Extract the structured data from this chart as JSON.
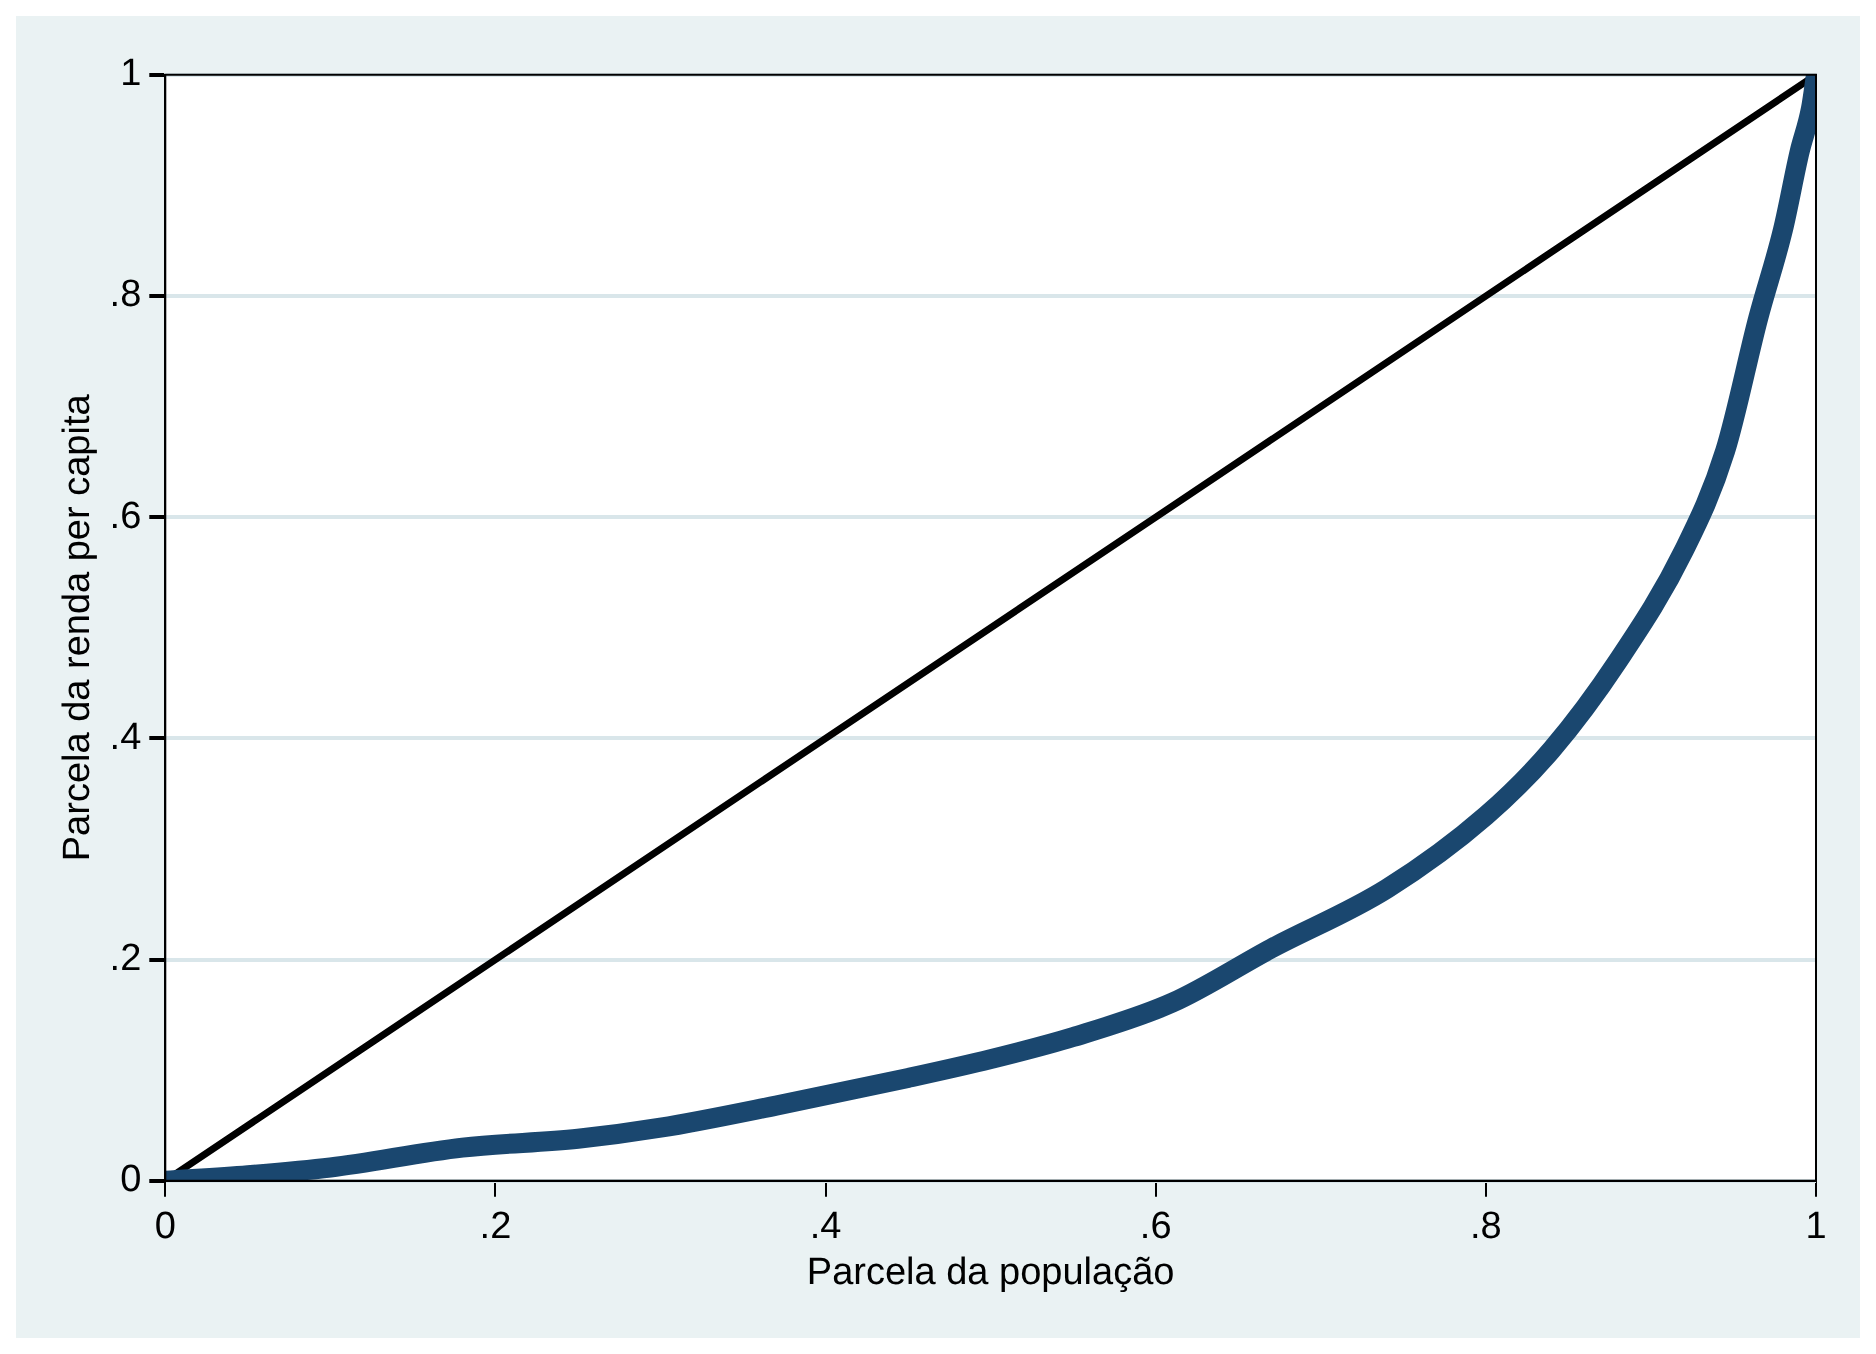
{
  "chart_data": {
    "type": "line",
    "xlabel": "Parcela da população",
    "ylabel": "Parcela da renda per capita",
    "xlim": [
      0,
      1
    ],
    "ylim": [
      0,
      1
    ],
    "xticks": [
      {
        "value": 0,
        "label": "0"
      },
      {
        "value": 0.2,
        "label": ".2"
      },
      {
        "value": 0.4,
        "label": ".4"
      },
      {
        "value": 0.6,
        "label": ".6"
      },
      {
        "value": 0.8,
        "label": ".8"
      },
      {
        "value": 1,
        "label": "1"
      }
    ],
    "yticks": [
      {
        "value": 0,
        "label": "0"
      },
      {
        "value": 0.2,
        "label": ".2"
      },
      {
        "value": 0.4,
        "label": ".4"
      },
      {
        "value": 0.6,
        "label": ".6"
      },
      {
        "value": 0.8,
        "label": ".8"
      },
      {
        "value": 1,
        "label": "1"
      }
    ],
    "grid": "y",
    "legend": false,
    "marker": "none",
    "line_style": "solid",
    "series": [
      {
        "color": "#1a476f",
        "x": [
          0,
          0.05,
          0.1,
          0.18,
          0.25,
          0.3,
          0.37,
          0.45,
          0.5,
          0.55,
          0.61,
          0.67,
          0.74,
          0.8,
          0.84,
          0.88,
          0.92,
          0.945,
          0.965,
          0.98,
          0.99,
          0.997,
          1
        ],
        "values": [
          0,
          0.005,
          0.012,
          0.03,
          0.038,
          0.048,
          0.068,
          0.093,
          0.11,
          0.13,
          0.161,
          0.21,
          0.264,
          0.33,
          0.39,
          0.47,
          0.57,
          0.66,
          0.78,
          0.86,
          0.93,
          0.97,
          1
        ]
      },
      {
        "color": "#000000",
        "x": [
          0,
          1
        ],
        "values": [
          0,
          1
        ]
      }
    ]
  }
}
